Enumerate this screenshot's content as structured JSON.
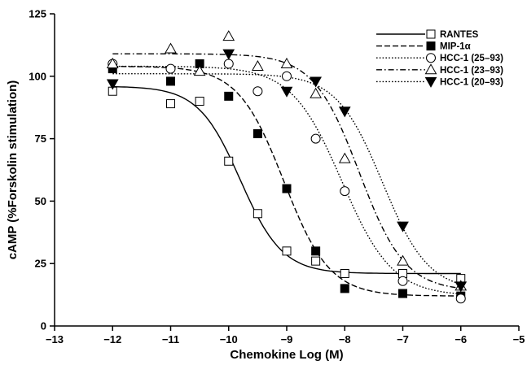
{
  "chart_data": {
    "type": "line",
    "xlabel": "Chemokine Log (M)",
    "ylabel": "cAMP (%Forskolin stimulation)",
    "xlim": [
      -13,
      -5
    ],
    "ylim": [
      0,
      125
    ],
    "xticks": [
      -13,
      -12,
      -11,
      -10,
      -9,
      -8,
      -7,
      -6,
      -5
    ],
    "yticks": [
      0,
      25,
      50,
      75,
      100,
      125
    ],
    "legend_position": "top-right",
    "grid": false,
    "series": [
      {
        "name": "RANTES",
        "marker": "square-open",
        "line_style": "solid",
        "points": [
          [
            -12,
            94
          ],
          [
            -11,
            89
          ],
          [
            -10.5,
            90
          ],
          [
            -10,
            66
          ],
          [
            -9.5,
            45
          ],
          [
            -9,
            30
          ],
          [
            -8.5,
            26
          ],
          [
            -8,
            21
          ],
          [
            -7,
            21
          ],
          [
            -6,
            19
          ]
        ],
        "curve": {
          "top": 96,
          "bottom": 21,
          "logEC50": -9.8,
          "hill": 1.2
        }
      },
      {
        "name": "MIP-1α",
        "marker": "square-filled",
        "line_style": "dashed",
        "points": [
          [
            -12,
            103
          ],
          [
            -11,
            98
          ],
          [
            -10.5,
            105
          ],
          [
            -10,
            92
          ],
          [
            -9.5,
            77
          ],
          [
            -9,
            55
          ],
          [
            -8.5,
            30
          ],
          [
            -8,
            15
          ],
          [
            -7,
            13
          ],
          [
            -6,
            12
          ]
        ],
        "curve": {
          "top": 104,
          "bottom": 12,
          "logEC50": -9.05,
          "hill": 1.1
        }
      },
      {
        "name": "HCC-1 (25–93)",
        "marker": "circle-open",
        "line_style": "dotted",
        "points": [
          [
            -12,
            105
          ],
          [
            -11,
            103
          ],
          [
            -10,
            105
          ],
          [
            -9.5,
            94
          ],
          [
            -9,
            100
          ],
          [
            -8.5,
            75
          ],
          [
            -8,
            54
          ],
          [
            -7,
            18
          ],
          [
            -6,
            11
          ]
        ],
        "curve": {
          "top": 104,
          "bottom": 12,
          "logEC50": -8.05,
          "hill": 1.0
        }
      },
      {
        "name": "HCC-1 (23–93)",
        "marker": "triangle-up-open",
        "line_style": "dash-dot",
        "points": [
          [
            -12,
            105
          ],
          [
            -11,
            111
          ],
          [
            -10.5,
            102
          ],
          [
            -10,
            116
          ],
          [
            -9.5,
            104
          ],
          [
            -9,
            105
          ],
          [
            -8.5,
            93
          ],
          [
            -8,
            67
          ],
          [
            -7,
            26
          ],
          [
            -6,
            16
          ]
        ],
        "curve": {
          "top": 109,
          "bottom": 14,
          "logEC50": -7.75,
          "hill": 1.1
        }
      },
      {
        "name": "HCC-1 (20–93)",
        "marker": "triangle-down-filled",
        "line_style": "dotted",
        "points": [
          [
            -12,
            97
          ],
          [
            -10,
            109
          ],
          [
            -9,
            94
          ],
          [
            -8.5,
            98
          ],
          [
            -8,
            86
          ],
          [
            -7,
            40
          ],
          [
            -6,
            16
          ]
        ],
        "curve": {
          "top": 101,
          "bottom": 14,
          "logEC50": -7.35,
          "hill": 1.1
        }
      }
    ]
  }
}
